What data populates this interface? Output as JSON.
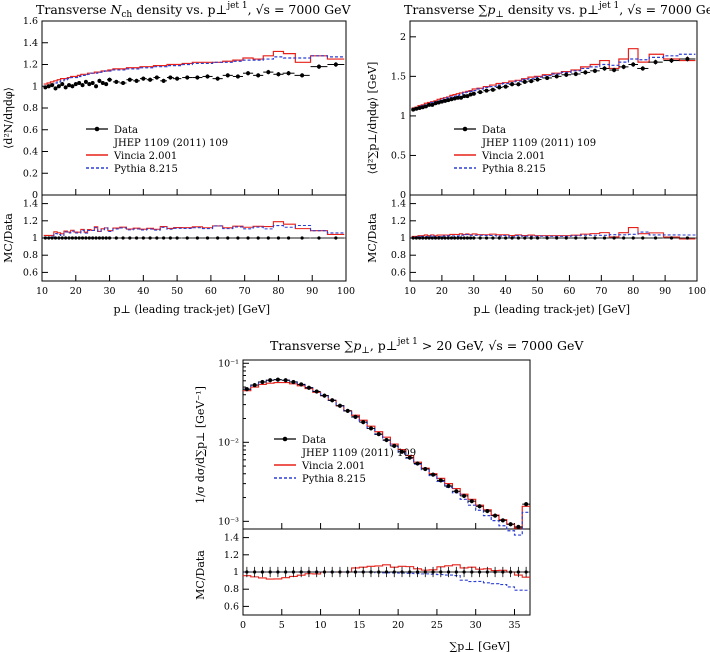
{
  "colors": {
    "data": "#000000",
    "vincia": "#e8201a",
    "pythia": "#2b3fd6"
  },
  "legend_entries": [
    "Data",
    "JHEP 1109 (2011) 109",
    "Vincia 2.001",
    "Pythia 8.215"
  ],
  "chart_data": [
    {
      "id": "nch",
      "type": "line",
      "title": "Transverse N_ch density vs. p⊥^jet 1, √s = 7000 GeV",
      "title_main": "Transverse ",
      "title_sym": "N",
      "title_sub": "ch",
      "title_tail": " density vs. p⊥",
      "title_sup": "jet 1",
      "title_end": ", √s = 7000 GeV",
      "ylabel": "⟨d²N/dηdφ⟩",
      "xlabel": "p⊥ (leading track-jet) [GeV]",
      "ratio_ylabel": "MC/Data",
      "xlim": [
        10,
        100
      ],
      "ylim": [
        0,
        1.6
      ],
      "ratio_ylim": [
        0.5,
        1.5
      ],
      "xticks": [
        "10",
        "20",
        "30",
        "40",
        "50",
        "60",
        "70",
        "80",
        "90",
        "100"
      ],
      "yticks": [
        "0",
        "0.2",
        "0.4",
        "0.6",
        "0.8",
        "1",
        "1.2",
        "1.4",
        "1.6"
      ],
      "ratio_yticks": [
        "0.6",
        "0.8",
        "1",
        "1.2",
        "1.4"
      ],
      "x": [
        11,
        12,
        13,
        14,
        15,
        16,
        17,
        18,
        19,
        20,
        21,
        22,
        23,
        24,
        25,
        26,
        27,
        28,
        29,
        30,
        32,
        34,
        36,
        38,
        40,
        42,
        44,
        46,
        48,
        50,
        53,
        56,
        59,
        62,
        65,
        68,
        71,
        74,
        77,
        80,
        83,
        87,
        92,
        97
      ],
      "series": [
        {
          "name": "Data",
          "values": [
            0.99,
            1.0,
            1.01,
            0.98,
            1.0,
            1.02,
            0.99,
            1.01,
            1.0,
            1.02,
            1.03,
            1.01,
            1.04,
            1.02,
            1.03,
            1.0,
            1.05,
            1.03,
            1.02,
            1.06,
            1.04,
            1.03,
            1.06,
            1.05,
            1.07,
            1.06,
            1.08,
            1.05,
            1.08,
            1.07,
            1.08,
            1.08,
            1.09,
            1.07,
            1.1,
            1.09,
            1.12,
            1.1,
            1.13,
            1.11,
            1.12,
            1.1,
            1.18,
            1.2
          ]
        },
        {
          "name": "Vincia 2.001",
          "values": [
            1.02,
            1.03,
            1.04,
            1.05,
            1.06,
            1.07,
            1.07,
            1.08,
            1.09,
            1.09,
            1.1,
            1.11,
            1.11,
            1.12,
            1.12,
            1.13,
            1.13,
            1.14,
            1.14,
            1.15,
            1.16,
            1.16,
            1.17,
            1.17,
            1.18,
            1.18,
            1.19,
            1.19,
            1.2,
            1.2,
            1.21,
            1.22,
            1.22,
            1.22,
            1.23,
            1.24,
            1.26,
            1.25,
            1.28,
            1.32,
            1.3,
            1.22,
            1.28,
            1.25
          ]
        },
        {
          "name": "Pythia 8.215",
          "values": [
            1.0,
            1.01,
            1.02,
            1.03,
            1.04,
            1.05,
            1.06,
            1.07,
            1.08,
            1.08,
            1.09,
            1.1,
            1.1,
            1.11,
            1.12,
            1.12,
            1.13,
            1.13,
            1.14,
            1.14,
            1.15,
            1.15,
            1.16,
            1.16,
            1.17,
            1.17,
            1.18,
            1.18,
            1.19,
            1.19,
            1.2,
            1.21,
            1.21,
            1.22,
            1.22,
            1.23,
            1.24,
            1.24,
            1.25,
            1.27,
            1.26,
            1.26,
            1.28,
            1.27
          ]
        }
      ]
    },
    {
      "id": "sumpt",
      "type": "line",
      "title": "Transverse ∑p⊥ density vs. p⊥^jet 1, √s = 7000 GeV",
      "title_main": "Transverse ∑",
      "title_sym": "p",
      "title_sub": "⊥",
      "title_tail": " density vs. p⊥",
      "title_sup": "jet 1",
      "title_end": ", √s = 7000 GeV",
      "ylabel": "⟨d²∑p⊥/dηdφ⟩ [GeV]",
      "xlabel": "p⊥ (leading track-jet) [GeV]",
      "ratio_ylabel": "MC/Data",
      "xlim": [
        10,
        100
      ],
      "ylim": [
        0,
        2.2
      ],
      "ratio_ylim": [
        0.5,
        1.5
      ],
      "xticks": [
        "10",
        "20",
        "30",
        "40",
        "50",
        "60",
        "70",
        "80",
        "90",
        "100"
      ],
      "yticks": [
        "0",
        "0.5",
        "1",
        "1.5",
        "2"
      ],
      "ratio_yticks": [
        "0.6",
        "0.8",
        "1",
        "1.2",
        "1.4"
      ],
      "x": [
        11,
        12,
        13,
        14,
        15,
        16,
        17,
        18,
        19,
        20,
        21,
        22,
        23,
        24,
        25,
        26,
        27,
        28,
        29,
        30,
        32,
        34,
        36,
        38,
        40,
        42,
        44,
        46,
        48,
        50,
        53,
        56,
        59,
        62,
        65,
        68,
        71,
        74,
        77,
        80,
        83,
        87,
        92,
        97
      ],
      "series": [
        {
          "name": "Data",
          "values": [
            1.08,
            1.09,
            1.1,
            1.11,
            1.12,
            1.14,
            1.14,
            1.16,
            1.17,
            1.18,
            1.19,
            1.2,
            1.21,
            1.22,
            1.23,
            1.23,
            1.25,
            1.25,
            1.27,
            1.28,
            1.3,
            1.32,
            1.33,
            1.36,
            1.37,
            1.4,
            1.4,
            1.43,
            1.44,
            1.46,
            1.48,
            1.5,
            1.52,
            1.53,
            1.55,
            1.57,
            1.6,
            1.58,
            1.62,
            1.65,
            1.6,
            1.68,
            1.7,
            1.72
          ]
        },
        {
          "name": "Vincia 2.001",
          "values": [
            1.1,
            1.11,
            1.13,
            1.14,
            1.16,
            1.17,
            1.18,
            1.19,
            1.21,
            1.22,
            1.23,
            1.24,
            1.26,
            1.27,
            1.28,
            1.29,
            1.3,
            1.31,
            1.32,
            1.34,
            1.35,
            1.37,
            1.39,
            1.41,
            1.42,
            1.44,
            1.45,
            1.47,
            1.49,
            1.5,
            1.52,
            1.54,
            1.56,
            1.58,
            1.62,
            1.65,
            1.7,
            1.6,
            1.72,
            1.85,
            1.68,
            1.78,
            1.72,
            1.7
          ]
        },
        {
          "name": "Pythia 8.215",
          "values": [
            1.09,
            1.1,
            1.12,
            1.13,
            1.14,
            1.15,
            1.17,
            1.18,
            1.19,
            1.2,
            1.22,
            1.23,
            1.24,
            1.25,
            1.26,
            1.27,
            1.29,
            1.3,
            1.31,
            1.32,
            1.34,
            1.36,
            1.37,
            1.39,
            1.41,
            1.42,
            1.44,
            1.46,
            1.47,
            1.49,
            1.51,
            1.53,
            1.55,
            1.57,
            1.6,
            1.62,
            1.65,
            1.64,
            1.68,
            1.72,
            1.71,
            1.74,
            1.76,
            1.78
          ]
        }
      ]
    },
    {
      "id": "dist",
      "type": "line",
      "title": "Transverse ∑p⊥, p⊥^jet 1 > 20 GeV, √s = 7000 GeV",
      "title_main": "Transverse ∑",
      "title_sym": "p",
      "title_sub": "⊥",
      "title_tail": ", p⊥",
      "title_sup": "jet 1",
      "title_end": " > 20 GeV, √s = 7000 GeV",
      "ylabel": "1/σ dσ/d∑p⊥ [GeV⁻¹]",
      "xlabel": "∑p⊥ [GeV]",
      "ratio_ylabel": "MC/Data",
      "log_y": true,
      "xlim": [
        0,
        37
      ],
      "ylim": [
        0.0008,
        0.11
      ],
      "ratio_ylim": [
        0.5,
        1.5
      ],
      "xticks": [
        "0",
        "5",
        "10",
        "15",
        "20",
        "25",
        "30",
        "35"
      ],
      "yticks": [
        "10⁻³",
        "10⁻²",
        "10⁻¹"
      ],
      "ratio_yticks": [
        "0.6",
        "0.8",
        "1",
        "1.2",
        "1.4"
      ],
      "x": [
        0.5,
        1.5,
        2.5,
        3.5,
        4.5,
        5.5,
        6.5,
        7.5,
        8.5,
        9.5,
        10.5,
        11.5,
        12.5,
        13.5,
        14.5,
        15.5,
        16.5,
        17.5,
        18.5,
        19.5,
        20.5,
        21.5,
        22.5,
        23.5,
        24.5,
        25.5,
        26.5,
        27.5,
        28.5,
        29.5,
        30.5,
        31.5,
        32.5,
        33.5,
        34.5,
        35.5,
        36.5
      ],
      "series": [
        {
          "name": "Data",
          "values": [
            0.047,
            0.053,
            0.058,
            0.061,
            0.062,
            0.061,
            0.058,
            0.054,
            0.049,
            0.044,
            0.039,
            0.034,
            0.029,
            0.025,
            0.021,
            0.018,
            0.015,
            0.0127,
            0.0107,
            0.009,
            0.0076,
            0.0064,
            0.0054,
            0.0046,
            0.0039,
            0.0033,
            0.0028,
            0.0024,
            0.0021,
            0.0018,
            0.00155,
            0.00135,
            0.00118,
            0.00103,
            0.00092,
            0.00085,
            0.00165
          ]
        },
        {
          "name": "Vincia 2.001",
          "values": [
            0.045,
            0.05,
            0.054,
            0.056,
            0.057,
            0.057,
            0.055,
            0.052,
            0.048,
            0.043,
            0.039,
            0.034,
            0.029,
            0.025,
            0.022,
            0.019,
            0.016,
            0.0136,
            0.0116,
            0.0095,
            0.0081,
            0.0068,
            0.0056,
            0.0047,
            0.004,
            0.0035,
            0.003,
            0.0026,
            0.0022,
            0.0019,
            0.0016,
            0.0014,
            0.0012,
            0.00105,
            0.00092,
            0.00082,
            0.00155
          ]
        },
        {
          "name": "Pythia 8.215",
          "values": [
            0.047,
            0.053,
            0.058,
            0.061,
            0.062,
            0.061,
            0.058,
            0.054,
            0.049,
            0.044,
            0.039,
            0.034,
            0.029,
            0.025,
            0.021,
            0.018,
            0.015,
            0.0126,
            0.0106,
            0.0089,
            0.0075,
            0.0063,
            0.0053,
            0.0045,
            0.0038,
            0.0032,
            0.0027,
            0.0023,
            0.0019,
            0.0016,
            0.00138,
            0.00118,
            0.00102,
            0.00088,
            0.00076,
            0.00067,
            0.0013
          ]
        }
      ]
    }
  ]
}
